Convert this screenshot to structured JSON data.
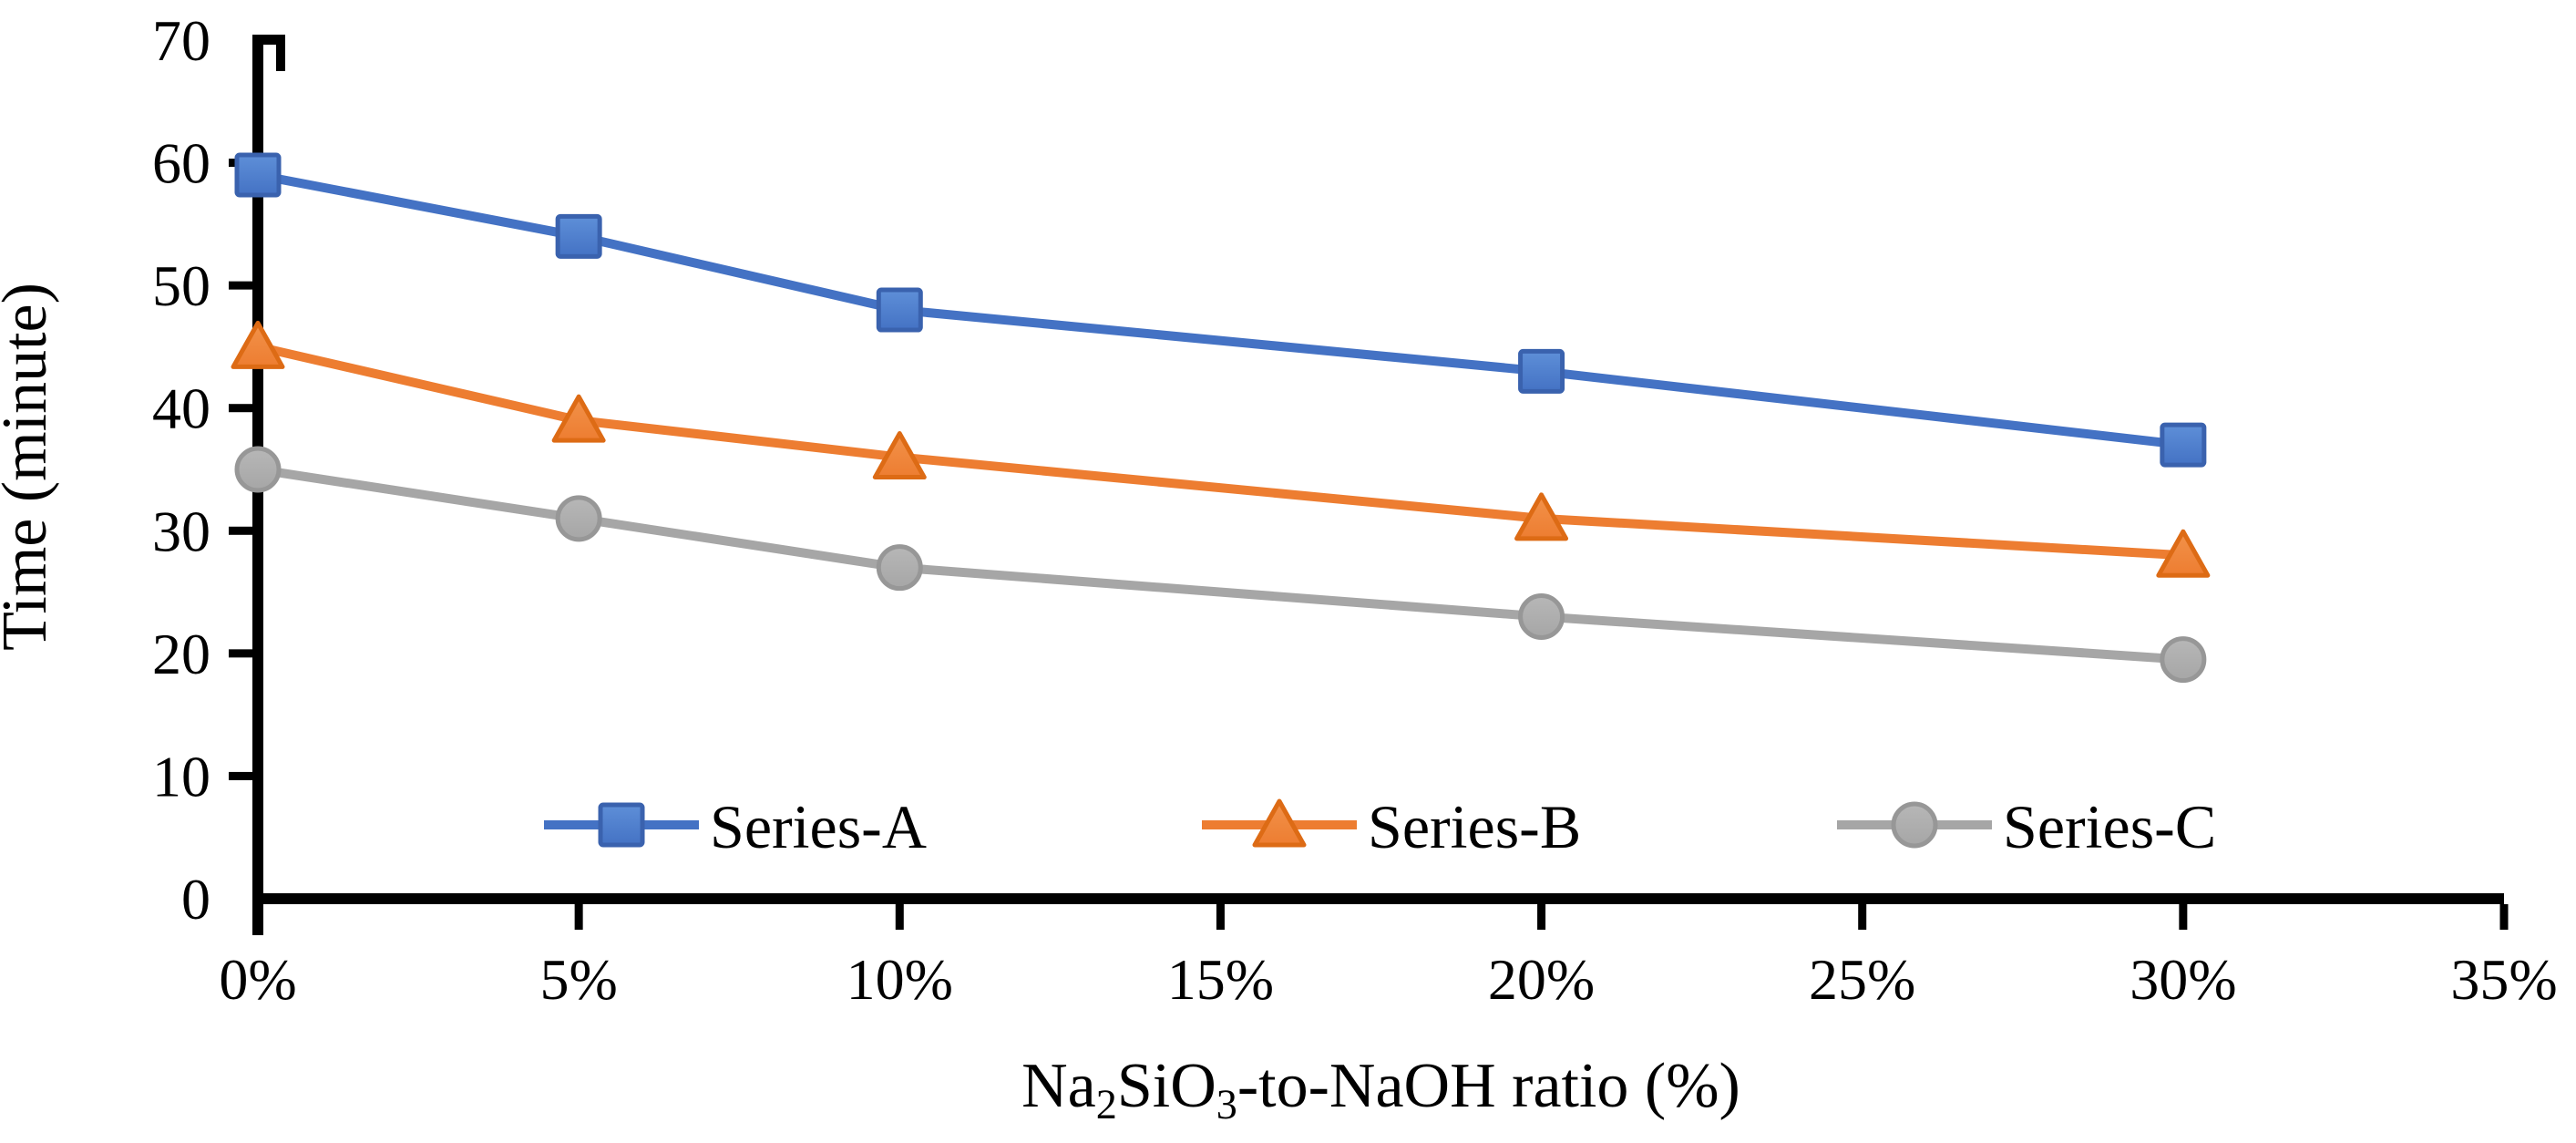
{
  "figure": {
    "background_color": "#FFFFFF",
    "text_color": "#000000"
  },
  "chart_data": {
    "type": "line",
    "title": "",
    "xlabel_plain": "Na2SiO3-to-NaOH ratio (%)",
    "xlabel_parts": [
      {
        "text": "Na"
      },
      {
        "text": "2",
        "sub": true
      },
      {
        "text": "SiO"
      },
      {
        "text": "3",
        "sub": true
      },
      {
        "text": "-to-NaOH ratio (%)"
      }
    ],
    "ylabel": "Time (minute)",
    "ylim": [
      0,
      70
    ],
    "y_tick_step": 10,
    "y_tick_labels": [
      "0",
      "10",
      "20",
      "30",
      "40",
      "50",
      "60",
      "70"
    ],
    "x_tick_values": [
      0,
      5,
      10,
      15,
      20,
      25,
      30,
      35
    ],
    "x_tick_labels": [
      "0%",
      "5%",
      "10%",
      "15%",
      "20%",
      "25%",
      "30%",
      "35%"
    ],
    "x": [
      0,
      5,
      10,
      20,
      30
    ],
    "grid": false,
    "legend_position": "bottom-inside-horizontal",
    "axis_color": "#000000",
    "series": [
      {
        "name": "Series-A",
        "marker": "square",
        "color": "#4472C4",
        "color_light": "#5E8FD8",
        "color_dark": "#3A62AE",
        "values": [
          59,
          54,
          48,
          43,
          37
        ]
      },
      {
        "name": "Series-B",
        "marker": "triangle",
        "color": "#ED7D31",
        "color_light": "#F2924A",
        "color_dark": "#DD6B15",
        "values": [
          45,
          39,
          36,
          31,
          28
        ]
      },
      {
        "name": "Series-C",
        "marker": "circle",
        "color": "#A6A6A6",
        "color_light": "#B7B7B7",
        "color_dark": "#979797",
        "values": [
          35,
          31,
          27,
          23,
          19.5
        ]
      }
    ]
  }
}
